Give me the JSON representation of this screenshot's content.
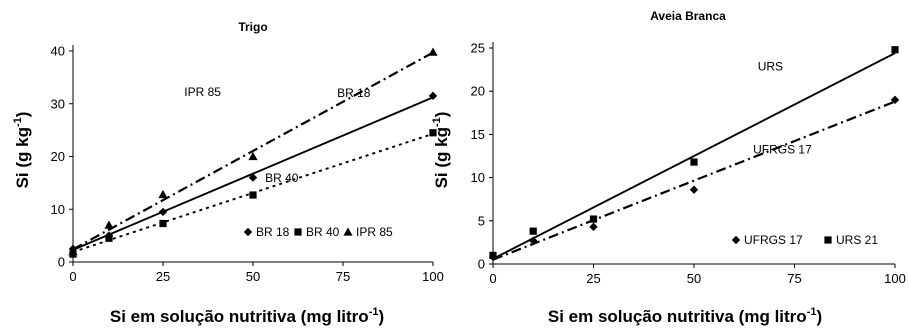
{
  "chart_data": [
    {
      "type": "scatter",
      "title": "Trigo",
      "xlabel": "Si em solução nutritiva (mg litro",
      "xlabel_sup": "-1",
      "xlabel_end": ")",
      "ylabel": "Si (g kg",
      "ylabel_sup": "-1",
      "ylabel_end": ")",
      "xlim": [
        0,
        100
      ],
      "ylim": [
        0,
        40
      ],
      "xticks": [
        0,
        25,
        50,
        75,
        100
      ],
      "yticks": [
        0,
        10,
        20,
        30,
        40
      ],
      "grid": false,
      "legend_position": "bottom-right",
      "series": [
        {
          "name": "BR 18",
          "marker": "diamond",
          "line": "solid",
          "x": [
            0,
            10,
            25,
            50,
            100
          ],
          "y": [
            2.5,
            5.0,
            9.5,
            16.0,
            31.5
          ],
          "fit": [
            2.3,
            31.2
          ],
          "label": "BR 18"
        },
        {
          "name": "BR 40",
          "marker": "square",
          "line": "dotted",
          "x": [
            0,
            10,
            25,
            50,
            100
          ],
          "y": [
            1.5,
            4.5,
            7.3,
            12.7,
            24.5
          ],
          "fit": [
            1.9,
            24.3
          ],
          "label": "BR 40"
        },
        {
          "name": "IPR 85",
          "marker": "triangle",
          "line": "dashdot",
          "x": [
            0,
            10,
            25,
            50,
            100
          ],
          "y": [
            2.0,
            7.0,
            12.8,
            20.0,
            39.8
          ],
          "fit": [
            2.4,
            39.7
          ],
          "label": "IPR 85"
        }
      ],
      "annotations": [
        {
          "text": "IPR 85",
          "x": 36,
          "y": 31.5
        },
        {
          "text": "BR 18",
          "x": 78,
          "y": 31.3
        },
        {
          "text": "BR 40",
          "x": 58,
          "y": 15.2
        }
      ]
    },
    {
      "type": "scatter",
      "title": "Aveia Branca",
      "xlabel": "Si em solução nutritiva (mg litro",
      "xlabel_sup": "-1",
      "xlabel_end": ")",
      "ylabel": "Si (g kg",
      "ylabel_sup": "-1",
      "ylabel_end": ")",
      "xlim": [
        0,
        100
      ],
      "ylim": [
        0,
        25
      ],
      "xticks": [
        0,
        25,
        50,
        75,
        100
      ],
      "yticks": [
        0,
        5,
        10,
        15,
        20,
        25
      ],
      "grid": false,
      "legend_position": "bottom-right",
      "series": [
        {
          "name": "UFRGS 17",
          "marker": "diamond",
          "line": "dashdot",
          "x": [
            0,
            10,
            25,
            50,
            100
          ],
          "y": [
            0.8,
            2.7,
            4.3,
            8.6,
            19.0
          ],
          "fit": [
            0.5,
            18.8
          ],
          "label": "UFRGS 17"
        },
        {
          "name": "URS 21",
          "marker": "square",
          "line": "solid",
          "x": [
            0,
            10,
            25,
            50,
            100
          ],
          "y": [
            1.0,
            3.8,
            5.2,
            11.8,
            24.8
          ],
          "fit": [
            0.6,
            24.4
          ],
          "label": "URS"
        }
      ],
      "annotations": [
        {
          "text": "URS",
          "x": 69,
          "y": 22.4
        },
        {
          "text": "UFRGS 17",
          "x": 72,
          "y": 12.8
        }
      ]
    }
  ]
}
